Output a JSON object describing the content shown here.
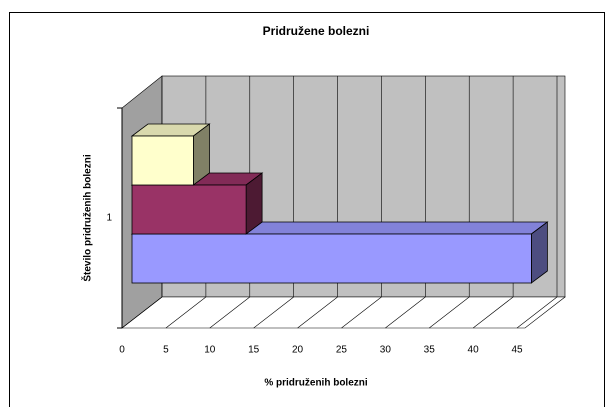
{
  "chart_data": {
    "type": "bar",
    "orientation": "horizontal",
    "title": "Pridružene bolezni",
    "x_label": "% pridruženih bolezni",
    "y_label": "Število pridruženih bolezni",
    "categories": [
      "1"
    ],
    "series": [
      {
        "color": "#9999ff",
        "values": [
          45.5
        ]
      },
      {
        "color": "#993366",
        "values": [
          13
        ]
      },
      {
        "color": "#ffffcc",
        "values": [
          7
        ]
      }
    ],
    "xlim": [
      0,
      45
    ],
    "xticks": [
      0,
      5,
      10,
      15,
      20,
      25,
      30,
      35,
      40,
      45
    ],
    "grid": true
  }
}
